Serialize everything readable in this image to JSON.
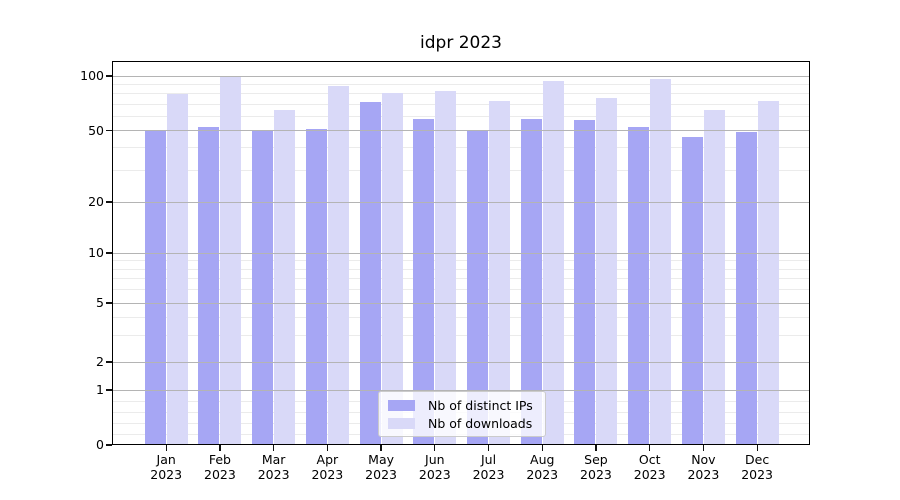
{
  "title": "idpr 2023",
  "chart_data": {
    "type": "bar",
    "title": "idpr 2023",
    "categories": [
      "Jan 2023",
      "Feb 2023",
      "Mar 2023",
      "Apr 2023",
      "May 2023",
      "Jun 2023",
      "Jul 2023",
      "Aug 2023",
      "Sep 2023",
      "Oct 2023",
      "Nov 2023",
      "Dec 2023"
    ],
    "series": [
      {
        "name": "Nb of distinct IPs",
        "color": "#a6a6f4",
        "values": [
          50,
          52,
          50,
          51,
          72,
          58,
          50,
          58,
          57,
          52,
          46,
          49
        ]
      },
      {
        "name": "Nb of downloads",
        "color": "#d9d9f8",
        "values": [
          80,
          99,
          65,
          88,
          81,
          83,
          73,
          94,
          76,
          96,
          65,
          73
        ]
      }
    ],
    "xlabel": "",
    "ylabel": "",
    "yscale": "symlog",
    "ylim": [
      0,
      120
    ],
    "y_major_ticks": [
      100,
      50,
      20,
      10,
      5,
      2,
      1,
      0
    ],
    "y_minor_ticks": [
      90,
      80,
      70,
      60,
      40,
      30,
      9,
      8,
      7,
      6,
      4,
      3,
      0.8,
      0.6,
      0.4,
      0.2
    ],
    "grid": "on",
    "legend_position": "lower center",
    "colors": {
      "bar_distinct_ips": "#a6a6f4",
      "bar_downloads": "#d9d9f8",
      "major_grid": "#b4b4b4",
      "minor_grid": "#ebebeb",
      "spine": "#000000"
    }
  }
}
